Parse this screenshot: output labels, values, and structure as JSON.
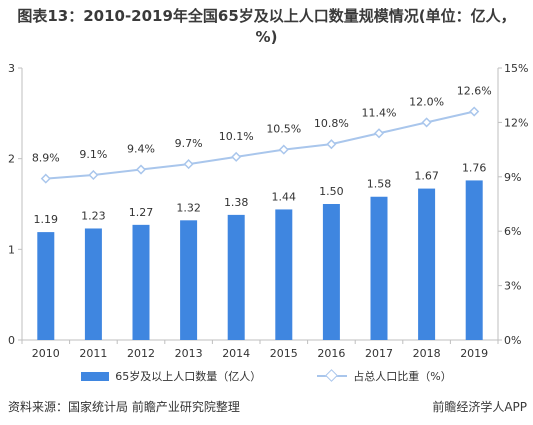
{
  "title": "图表13：2010-2019年全国65岁及以上人口数量规模情况(单位：亿人，%)",
  "source": "资料来源：国家统计局 前瞻产业研究院整理",
  "brand": "前瞻经济学人APP",
  "colors": {
    "bar": "#3f86e0",
    "line": "#a9c6ec",
    "axis": "#bfbfbf",
    "text": "#333333"
  },
  "chart_data": {
    "type": "bar+line",
    "categories": [
      "2010",
      "2011",
      "2012",
      "2013",
      "2014",
      "2015",
      "2016",
      "2017",
      "2018",
      "2019"
    ],
    "series": [
      {
        "name": "65岁及以上人口数量（亿人）",
        "type": "bar",
        "axis": "left",
        "values": [
          1.19,
          1.23,
          1.27,
          1.32,
          1.38,
          1.44,
          1.5,
          1.58,
          1.67,
          1.76
        ],
        "labels": [
          "1.19",
          "1.23",
          "1.27",
          "1.32",
          "1.38",
          "1.44",
          "1.50",
          "1.58",
          "1.67",
          "1.76"
        ]
      },
      {
        "name": "占总人口比重（%）",
        "type": "line",
        "axis": "right",
        "values": [
          8.9,
          9.1,
          9.4,
          9.7,
          10.1,
          10.5,
          10.8,
          11.4,
          12.0,
          12.6
        ],
        "labels": [
          "8.9%",
          "9.1%",
          "9.4%",
          "9.7%",
          "10.1%",
          "10.5%",
          "10.8%",
          "11.4%",
          "12.0%",
          "12.6%"
        ]
      }
    ],
    "y_left": {
      "ticks": [
        "0",
        "1",
        "2",
        "3"
      ],
      "range": [
        0,
        3
      ]
    },
    "y_right": {
      "ticks": [
        "0%",
        "3%",
        "6%",
        "9%",
        "12%",
        "15%"
      ],
      "range": [
        0,
        15
      ]
    },
    "legend": "bottom-center",
    "grid": false
  }
}
